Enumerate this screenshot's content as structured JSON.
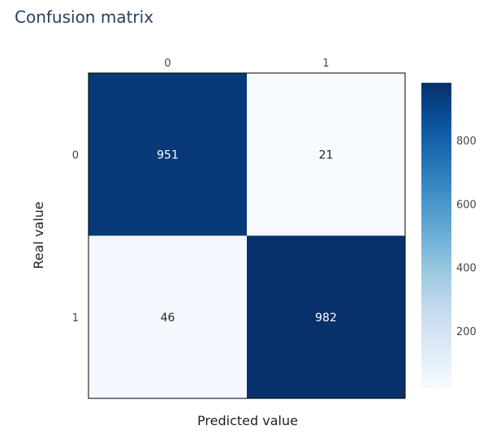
{
  "chart_data": {
    "type": "heatmap",
    "title": "Confusion matrix",
    "xlabel": "Predicted value",
    "ylabel": "Real value",
    "x_categories": [
      "0",
      "1"
    ],
    "y_categories": [
      "0",
      "1"
    ],
    "z": [
      [
        951,
        21
      ],
      [
        46,
        982
      ]
    ],
    "annotations": [
      [
        "951",
        "21"
      ],
      [
        "46",
        "982"
      ]
    ],
    "colorscale": "Blues",
    "zmin": 21,
    "zmax": 982,
    "colorbar_ticks": [
      200,
      400,
      600,
      800
    ],
    "colorbar_tick_labels": [
      "200",
      "400",
      "600",
      "800"
    ],
    "x_axis_side": "top",
    "grid": false
  }
}
